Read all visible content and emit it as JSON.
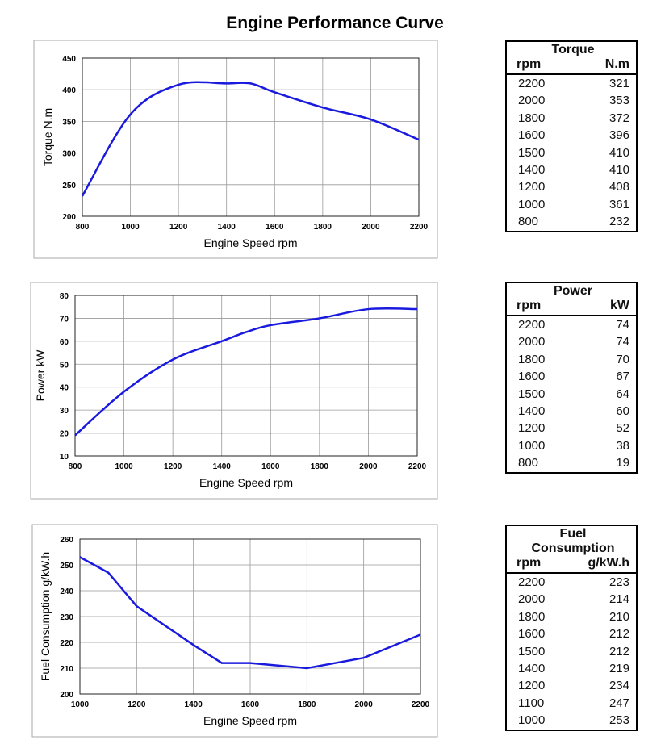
{
  "title": "Engine Performance Curve",
  "colors": {
    "curve": "#1a1adf",
    "grid": "#999999",
    "frame": "#aaaaaa"
  },
  "chart_data": [
    {
      "type": "line",
      "smooth": true,
      "title": "",
      "xlabel": "Engine Speed rpm",
      "ylabel": "Torque N.m",
      "xlim": [
        800,
        2200
      ],
      "ylim": [
        200,
        450
      ],
      "xticks": [
        800,
        1000,
        1200,
        1400,
        1600,
        1800,
        2000,
        2200
      ],
      "yticks": [
        200,
        250,
        300,
        350,
        400,
        450
      ],
      "grid": true,
      "x": [
        800,
        1000,
        1200,
        1400,
        1500,
        1600,
        1800,
        2000,
        2200
      ],
      "y": [
        232,
        361,
        408,
        410,
        410,
        396,
        372,
        353,
        321
      ]
    },
    {
      "type": "line",
      "smooth": true,
      "title": "",
      "xlabel": "Engine Speed rpm",
      "ylabel": "Power kW",
      "xlim": [
        800,
        2200
      ],
      "ylim": [
        10,
        80
      ],
      "xticks": [
        800,
        1000,
        1200,
        1400,
        1600,
        1800,
        2000,
        2200
      ],
      "yticks": [
        10,
        20,
        30,
        40,
        50,
        60,
        70,
        80
      ],
      "grid": true,
      "reference_line": 20,
      "x": [
        800,
        1000,
        1200,
        1400,
        1500,
        1600,
        1800,
        2000,
        2200
      ],
      "y": [
        19,
        38,
        52,
        60,
        64,
        67,
        70,
        74,
        74
      ]
    },
    {
      "type": "line",
      "smooth": false,
      "title": "",
      "xlabel": "Engine Speed rpm",
      "ylabel": "Fuel Consumption g/kW.h",
      "xlim": [
        1000,
        2200
      ],
      "ylim": [
        200,
        260
      ],
      "xticks": [
        1000,
        1200,
        1400,
        1600,
        1800,
        2000,
        2200
      ],
      "yticks": [
        200,
        210,
        220,
        230,
        240,
        250,
        260
      ],
      "grid": true,
      "x": [
        1000,
        1100,
        1200,
        1400,
        1500,
        1600,
        1800,
        2000,
        2200
      ],
      "y": [
        253,
        247,
        234,
        219,
        212,
        212,
        210,
        214,
        223
      ]
    }
  ],
  "tables": [
    {
      "title": "Torque",
      "col1": "rpm",
      "col2": "N.m",
      "rows": [
        [
          "2200",
          "321"
        ],
        [
          "2000",
          "353"
        ],
        [
          "1800",
          "372"
        ],
        [
          "1600",
          "396"
        ],
        [
          "1500",
          "410"
        ],
        [
          "1400",
          "410"
        ],
        [
          "1200",
          "408"
        ],
        [
          "1000",
          "361"
        ],
        [
          "800",
          "232"
        ]
      ]
    },
    {
      "title": "Power",
      "col1": "rpm",
      "col2": "kW",
      "rows": [
        [
          "2200",
          "74"
        ],
        [
          "2000",
          "74"
        ],
        [
          "1800",
          "70"
        ],
        [
          "1600",
          "67"
        ],
        [
          "1500",
          "64"
        ],
        [
          "1400",
          "60"
        ],
        [
          "1200",
          "52"
        ],
        [
          "1000",
          "38"
        ],
        [
          "800",
          "19"
        ]
      ]
    },
    {
      "title": "Fuel Consumption",
      "col1": "rpm",
      "col2": "g/kW.h",
      "rows": [
        [
          "2200",
          "223"
        ],
        [
          "2000",
          "214"
        ],
        [
          "1800",
          "210"
        ],
        [
          "1600",
          "212"
        ],
        [
          "1500",
          "212"
        ],
        [
          "1400",
          "219"
        ],
        [
          "1200",
          "234"
        ],
        [
          "1100",
          "247"
        ],
        [
          "1000",
          "253"
        ]
      ]
    }
  ]
}
